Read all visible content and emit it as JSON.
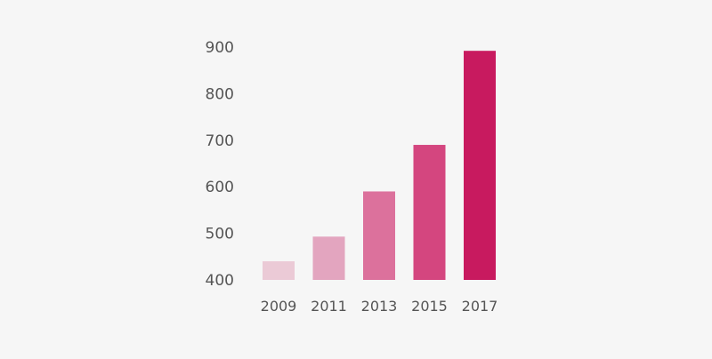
{
  "chart_data": {
    "type": "bar",
    "title": "",
    "xlabel": "",
    "ylabel": "",
    "categories": [
      "2009",
      "2011",
      "2013",
      "2015",
      "2017"
    ],
    "values": [
      440,
      493,
      590,
      690,
      892
    ],
    "bar_colors": [
      "#ebcad6",
      "#e3a5bf",
      "#dc719c",
      "#d4467f",
      "#c81a5f"
    ],
    "y_ticks": [
      400,
      500,
      600,
      700,
      800,
      900
    ],
    "ylim": [
      400,
      900
    ],
    "grid": false,
    "legend": "none"
  },
  "colors": {
    "background": "#f6f6f6",
    "text": "#555555"
  }
}
